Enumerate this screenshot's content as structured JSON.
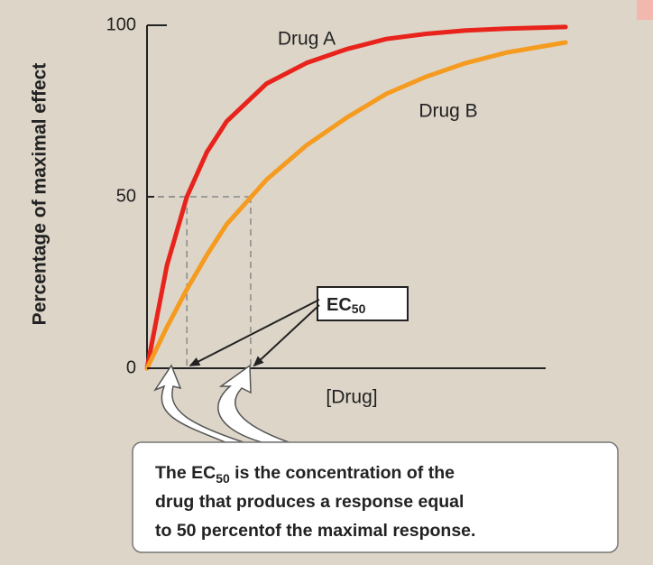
{
  "chart_data": {
    "type": "line",
    "ylabel": "Percentage of maximal effect",
    "xlabel": "[Drug]",
    "xlim": [
      0,
      10
    ],
    "ylim": [
      0,
      100
    ],
    "yticks": [
      0,
      50,
      100
    ],
    "x": [
      0,
      0.5,
      1,
      1.5,
      2,
      3,
      4,
      5,
      6,
      7,
      8,
      9,
      10.5
    ],
    "series": [
      {
        "name": "Drug A",
        "color": "#e8231c",
        "values": [
          0,
          30,
          50,
          63,
          72,
          83,
          89,
          93,
          96,
          97.5,
          98.5,
          99,
          99.5
        ]
      },
      {
        "name": "Drug B",
        "color": "#f59b1f",
        "values": [
          0,
          12,
          23,
          33,
          42,
          55,
          65,
          73,
          80,
          85,
          89,
          92,
          95
        ]
      }
    ],
    "ec50_guides": [
      {
        "x": 1,
        "y": 50
      },
      {
        "x": 2.6,
        "y": 50
      }
    ],
    "ec50_label": {
      "main": "EC",
      "sub": "50"
    },
    "callout": {
      "line1": [
        "The EC",
        "50",
        " is the concentration of the"
      ],
      "line2": "drug that produces a response equal",
      "line3": "to 50 percentof the maximal response."
    }
  }
}
